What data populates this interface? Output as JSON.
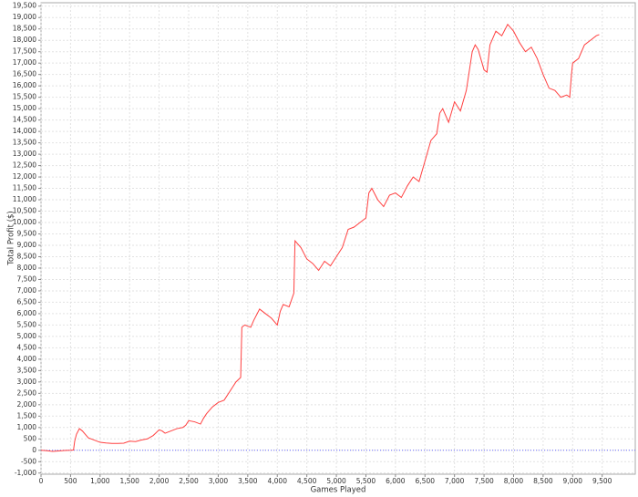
{
  "chart_data": {
    "type": "line",
    "x_label": "Games Played",
    "y_label": "Total Profit ($)",
    "color": "#ff4040",
    "grid": true,
    "xlim": [
      0,
      10060
    ],
    "ylim": [
      -1050,
      19650
    ],
    "xticks": [
      0,
      500,
      {
        "value": 1000,
        "label": "1,000"
      },
      {
        "value": 1500,
        "label": "1,500"
      },
      {
        "value": 2000,
        "label": "2,000"
      },
      {
        "value": 2500,
        "label": "2,500"
      },
      {
        "value": 3000,
        "label": "3,000"
      },
      {
        "value": 3500,
        "label": "3,500"
      },
      {
        "value": 4000,
        "label": "4,000"
      },
      {
        "value": 4500,
        "label": "4,500"
      },
      {
        "value": 5000,
        "label": "5,000"
      },
      {
        "value": 5500,
        "label": "5,500"
      },
      {
        "value": 6000,
        "label": "6,000"
      },
      {
        "value": 6500,
        "label": "6,500"
      },
      {
        "value": 7000,
        "label": "7,000"
      },
      {
        "value": 7500,
        "label": "7,500"
      },
      {
        "value": 8000,
        "label": "8,000"
      },
      {
        "value": 8500,
        "label": "8,500"
      },
      {
        "value": 9000,
        "label": "9,000"
      },
      {
        "value": 9500,
        "label": "9,500"
      }
    ],
    "yticks": [
      {
        "value": -1000,
        "label": "-1,000"
      },
      -500,
      0,
      500,
      {
        "value": 1000,
        "label": "1,000"
      },
      {
        "value": 1500,
        "label": "1,500"
      },
      {
        "value": 2000,
        "label": "2,000"
      },
      {
        "value": 2500,
        "label": "2,500"
      },
      {
        "value": 3000,
        "label": "3,000"
      },
      {
        "value": 3500,
        "label": "3,500"
      },
      {
        "value": 4000,
        "label": "4,000"
      },
      {
        "value": 4500,
        "label": "4,500"
      },
      {
        "value": 5000,
        "label": "5,000"
      },
      {
        "value": 5500,
        "label": "5,500"
      },
      {
        "value": 6000,
        "label": "6,000"
      },
      {
        "value": 6500,
        "label": "6,500"
      },
      {
        "value": 7000,
        "label": "7,000"
      },
      {
        "value": 7500,
        "label": "7,500"
      },
      {
        "value": 8000,
        "label": "8,000"
      },
      {
        "value": 8500,
        "label": "8,500"
      },
      {
        "value": 9000,
        "label": "9,000"
      },
      {
        "value": 9500,
        "label": "9,500"
      },
      {
        "value": 10000,
        "label": "10,000"
      },
      {
        "value": 10500,
        "label": "10,500"
      },
      {
        "value": 11000,
        "label": "11,000"
      },
      {
        "value": 11500,
        "label": "11,500"
      },
      {
        "value": 12000,
        "label": "12,000"
      },
      {
        "value": 12500,
        "label": "12,500"
      },
      {
        "value": 13000,
        "label": "13,000"
      },
      {
        "value": 13500,
        "label": "13,500"
      },
      {
        "value": 14000,
        "label": "14,000"
      },
      {
        "value": 14500,
        "label": "14,500"
      },
      {
        "value": 15000,
        "label": "15,000"
      },
      {
        "value": 15500,
        "label": "15,500"
      },
      {
        "value": 16000,
        "label": "16,000"
      },
      {
        "value": 16500,
        "label": "16,500"
      },
      {
        "value": 17000,
        "label": "17,000"
      },
      {
        "value": 17500,
        "label": "17,500"
      },
      {
        "value": 18000,
        "label": "18,000"
      },
      {
        "value": 18500,
        "label": "18,500"
      },
      {
        "value": 19000,
        "label": "19,000"
      },
      {
        "value": 19500,
        "label": "19,500"
      }
    ],
    "x": [
      0,
      100,
      200,
      300,
      400,
      500,
      550,
      570,
      600,
      650,
      700,
      750,
      800,
      900,
      1000,
      1100,
      1200,
      1300,
      1400,
      1500,
      1600,
      1700,
      1800,
      1900,
      2000,
      2050,
      2100,
      2200,
      2300,
      2400,
      2450,
      2500,
      2600,
      2700,
      2750,
      2800,
      2900,
      3000,
      3100,
      3200,
      3300,
      3380,
      3400,
      3450,
      3550,
      3600,
      3700,
      3800,
      3900,
      4000,
      4050,
      4100,
      4200,
      4280,
      4300,
      4400,
      4500,
      4600,
      4700,
      4800,
      4900,
      5000,
      5100,
      5200,
      5300,
      5400,
      5500,
      5550,
      5600,
      5700,
      5800,
      5900,
      6000,
      6100,
      6200,
      6300,
      6400,
      6500,
      6600,
      6700,
      6750,
      6800,
      6900,
      7000,
      7100,
      7200,
      7300,
      7350,
      7400,
      7500,
      7550,
      7600,
      7700,
      7800,
      7900,
      8000,
      8100,
      8200,
      8300,
      8400,
      8500,
      8600,
      8700,
      8800,
      8900,
      8950,
      8980,
      9000,
      9100,
      9200,
      9300,
      9400,
      9450
    ],
    "values": [
      0,
      -20,
      -50,
      -30,
      -10,
      0,
      10,
      400,
      700,
      950,
      850,
      700,
      550,
      450,
      350,
      320,
      300,
      300,
      310,
      400,
      380,
      450,
      500,
      650,
      900,
      850,
      750,
      850,
      950,
      1000,
      1100,
      1300,
      1250,
      1150,
      1400,
      1600,
      1900,
      2100,
      2200,
      2600,
      3000,
      3200,
      5400,
      5500,
      5400,
      5700,
      6200,
      6000,
      5800,
      5500,
      6100,
      6400,
      6300,
      6900,
      9200,
      8900,
      8400,
      8200,
      7900,
      8300,
      8100,
      8500,
      8900,
      9700,
      9800,
      10000,
      10200,
      11300,
      11500,
      11000,
      10700,
      11200,
      11300,
      11100,
      11600,
      12000,
      11800,
      12700,
      13600,
      13900,
      14800,
      15000,
      14400,
      15300,
      14900,
      15800,
      17500,
      17800,
      17600,
      16700,
      16600,
      17800,
      18400,
      18200,
      18700,
      18400,
      17900,
      17500,
      17700,
      17200,
      16500,
      15900,
      15800,
      15500,
      15600,
      15500,
      16500,
      17000,
      17200,
      17800,
      18000,
      18200,
      18250
    ]
  }
}
